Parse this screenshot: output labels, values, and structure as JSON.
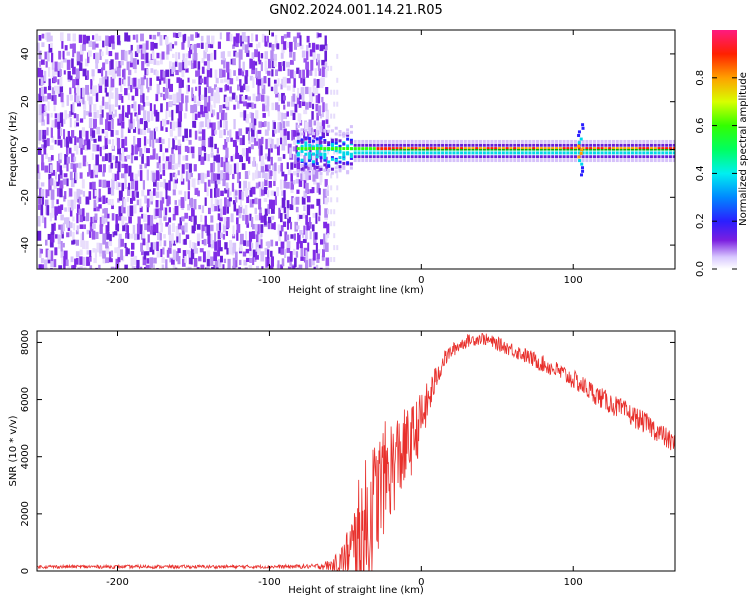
{
  "title": "GN02.2024.001.14.21.R05",
  "chart_data": [
    {
      "type": "heatmap",
      "xlabel": "Height of straight line (km)",
      "ylabel": "Frequency (Hz)",
      "xlim": [
        -253,
        167
      ],
      "ylim": [
        -50,
        50
      ],
      "x_ticks": [
        -200,
        -100,
        0,
        100
      ],
      "y_ticks": [
        -40,
        -20,
        0,
        20,
        40
      ],
      "noise_region_x": [
        -253,
        -62
      ],
      "signal_start_x": -82,
      "carrier_frequency": 0,
      "disturbance_x": 104,
      "colorbar": {
        "label": "Normalized spectral amplitude",
        "range": [
          0,
          1
        ],
        "ticks": [
          0.0,
          0.2,
          0.4,
          0.6,
          0.8
        ]
      }
    },
    {
      "type": "line",
      "xlabel": "Height of straight line (km)",
      "ylabel": "SNR (10 * v/v)",
      "xlim": [
        -253,
        167
      ],
      "ylim": [
        0,
        8400
      ],
      "x_ticks": [
        -200,
        -100,
        0,
        100
      ],
      "y_ticks": [
        0,
        2000,
        4000,
        6000,
        8000
      ],
      "series": [
        {
          "color": "#e8302c",
          "x": [
            -253,
            -200,
            -150,
            -100,
            -70,
            -60,
            -55,
            -50,
            -45,
            -40,
            -35,
            -30,
            -25,
            -20,
            -15,
            -10,
            -5,
            0,
            5,
            10,
            15,
            20,
            25,
            30,
            35,
            40,
            45,
            50,
            60,
            70,
            80,
            90,
            100,
            110,
            120,
            130,
            140,
            150,
            160,
            167
          ],
          "values": [
            150,
            150,
            150,
            150,
            160,
            200,
            260,
            350,
            550,
            900,
            1600,
            2500,
            3200,
            3600,
            4000,
            4300,
            4700,
            5300,
            6000,
            6800,
            7400,
            7700,
            7900,
            8050,
            8100,
            8150,
            8050,
            7950,
            7750,
            7500,
            7250,
            7000,
            6700,
            6350,
            6000,
            5700,
            5400,
            5100,
            4700,
            4400
          ],
          "noise_amplitude": [
            60,
            60,
            60,
            60,
            80,
            200,
            400,
            900,
            1800,
            2600,
            2600,
            2200,
            2000,
            1800,
            1600,
            1400,
            1200,
            1000,
            700,
            450,
            300,
            250,
            230,
            220,
            220,
            220,
            220,
            240,
            260,
            280,
            300,
            320,
            340,
            360,
            380,
            380,
            380,
            380,
            380,
            380
          ]
        }
      ]
    }
  ]
}
